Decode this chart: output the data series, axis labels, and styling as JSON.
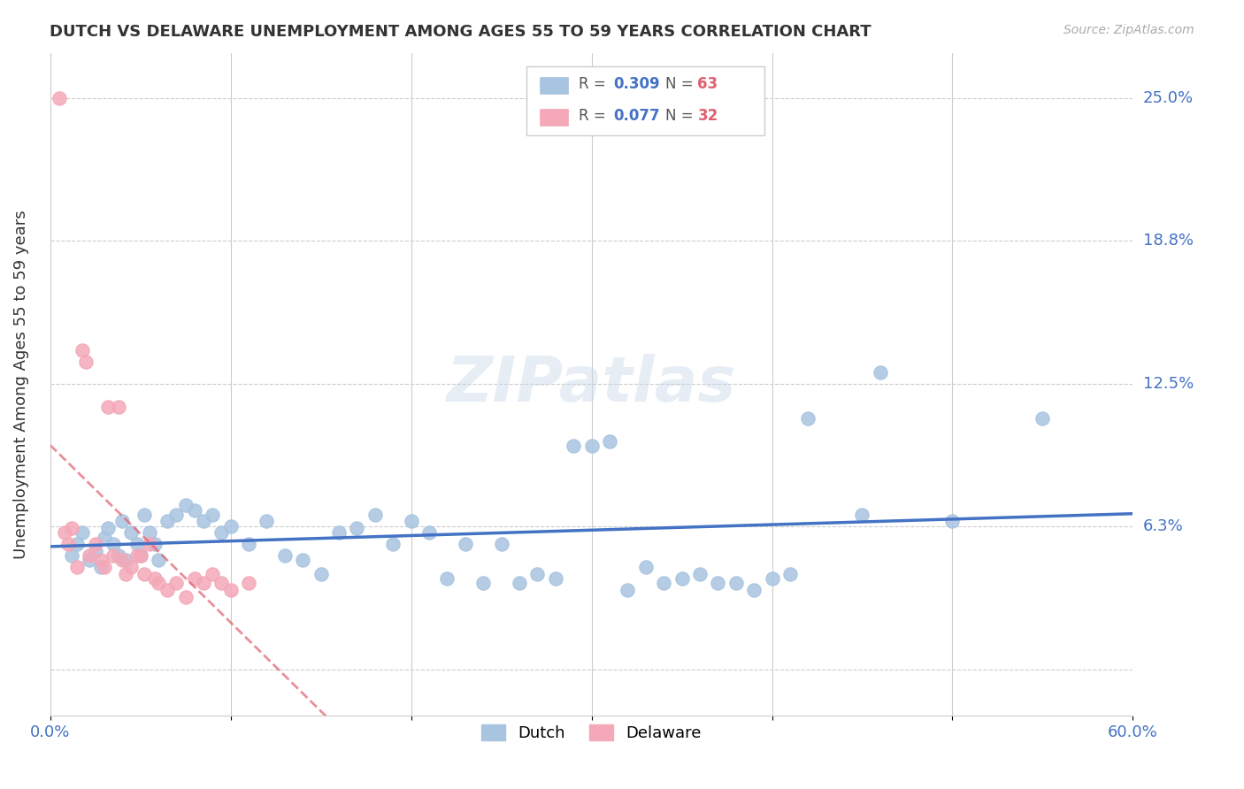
{
  "title": "DUTCH VS DELAWARE UNEMPLOYMENT AMONG AGES 55 TO 59 YEARS CORRELATION CHART",
  "source": "Source: ZipAtlas.com",
  "ylabel": "Unemployment Among Ages 55 to 59 years",
  "xlim": [
    0.0,
    0.6
  ],
  "ylim": [
    -0.02,
    0.27
  ],
  "xticks": [
    0.0,
    0.1,
    0.2,
    0.3,
    0.4,
    0.5,
    0.6
  ],
  "xticklabels": [
    "0.0%",
    "",
    "",
    "",
    "",
    "",
    "60.0%"
  ],
  "ytick_positions": [
    0.0,
    0.063,
    0.125,
    0.188,
    0.25
  ],
  "ytick_labels": [
    "",
    "6.3%",
    "12.5%",
    "18.8%",
    "25.0%"
  ],
  "dutch_R": 0.309,
  "dutch_N": 63,
  "delaware_R": 0.077,
  "delaware_N": 32,
  "dutch_color": "#a8c4e0",
  "delaware_color": "#f4a8b8",
  "dutch_line_color": "#4472c4",
  "delaware_line_color": "#e06070",
  "watermark": "ZIPatlas",
  "dutch_x": [
    0.012,
    0.015,
    0.018,
    0.022,
    0.025,
    0.028,
    0.03,
    0.032,
    0.035,
    0.038,
    0.04,
    0.042,
    0.045,
    0.048,
    0.05,
    0.052,
    0.055,
    0.058,
    0.06,
    0.065,
    0.07,
    0.075,
    0.08,
    0.085,
    0.09,
    0.095,
    0.1,
    0.11,
    0.12,
    0.13,
    0.14,
    0.15,
    0.16,
    0.17,
    0.18,
    0.19,
    0.2,
    0.21,
    0.22,
    0.23,
    0.24,
    0.25,
    0.26,
    0.27,
    0.28,
    0.29,
    0.3,
    0.31,
    0.32,
    0.33,
    0.34,
    0.35,
    0.36,
    0.37,
    0.38,
    0.39,
    0.4,
    0.41,
    0.42,
    0.45,
    0.46,
    0.5,
    0.55
  ],
  "dutch_y": [
    0.05,
    0.055,
    0.06,
    0.048,
    0.052,
    0.045,
    0.058,
    0.062,
    0.055,
    0.05,
    0.065,
    0.048,
    0.06,
    0.055,
    0.05,
    0.068,
    0.06,
    0.055,
    0.048,
    0.065,
    0.068,
    0.072,
    0.07,
    0.065,
    0.068,
    0.06,
    0.063,
    0.055,
    0.065,
    0.05,
    0.048,
    0.042,
    0.06,
    0.062,
    0.068,
    0.055,
    0.065,
    0.06,
    0.04,
    0.055,
    0.038,
    0.055,
    0.038,
    0.042,
    0.04,
    0.098,
    0.098,
    0.1,
    0.035,
    0.045,
    0.038,
    0.04,
    0.042,
    0.038,
    0.038,
    0.035,
    0.04,
    0.042,
    0.11,
    0.068,
    0.13,
    0.065,
    0.11
  ],
  "delaware_x": [
    0.005,
    0.008,
    0.01,
    0.012,
    0.015,
    0.018,
    0.02,
    0.022,
    0.025,
    0.028,
    0.03,
    0.032,
    0.035,
    0.038,
    0.04,
    0.042,
    0.045,
    0.048,
    0.05,
    0.052,
    0.055,
    0.058,
    0.06,
    0.065,
    0.07,
    0.075,
    0.08,
    0.085,
    0.09,
    0.095,
    0.1,
    0.11
  ],
  "delaware_y": [
    0.25,
    0.06,
    0.055,
    0.062,
    0.045,
    0.14,
    0.135,
    0.05,
    0.055,
    0.048,
    0.045,
    0.115,
    0.05,
    0.115,
    0.048,
    0.042,
    0.045,
    0.05,
    0.05,
    0.042,
    0.055,
    0.04,
    0.038,
    0.035,
    0.038,
    0.032,
    0.04,
    0.038,
    0.042,
    0.038,
    0.035,
    0.038
  ]
}
